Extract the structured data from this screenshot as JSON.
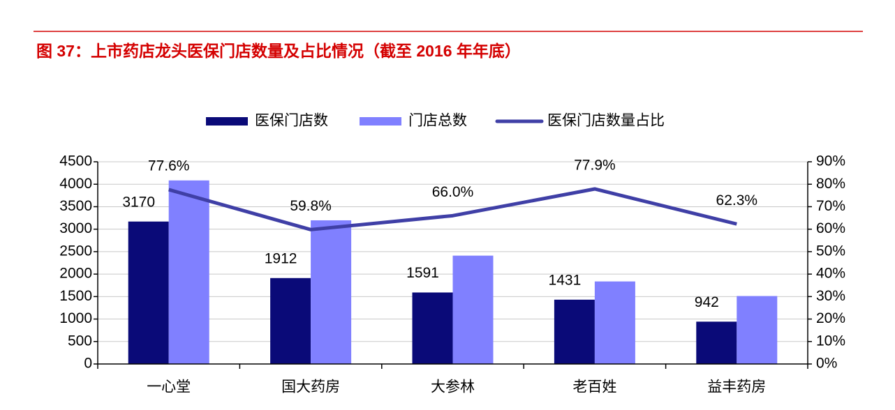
{
  "chart_data": {
    "type": "bar-line",
    "title": "图 37：上市药店龙头医保门店数量及占比情况（截至 2016 年年底）",
    "categories": [
      "一心堂",
      "国大药房",
      "大参林",
      "老百姓",
      "益丰药房"
    ],
    "series": [
      {
        "name": "医保门店数",
        "color": "#0a0a78",
        "type": "bar",
        "values": [
          3170,
          1912,
          1591,
          1431,
          942
        ],
        "show_labels": true
      },
      {
        "name": "门店总数",
        "color": "#8080ff",
        "type": "bar",
        "values": [
          4085,
          3197,
          2411,
          1837,
          1512
        ],
        "show_labels": false
      },
      {
        "name": "医保门店数量占比",
        "color": "#3f3fa6",
        "type": "line",
        "axis": "y2",
        "values": [
          77.6,
          59.8,
          66.0,
          77.9,
          62.3
        ],
        "value_labels": [
          "77.6%",
          "59.8%",
          "66.0%",
          "77.9%",
          "62.3%"
        ],
        "show_labels": true
      }
    ],
    "ylim": [
      0,
      4500
    ],
    "yticks": [
      0,
      500,
      1000,
      1500,
      2000,
      2500,
      3000,
      3500,
      4000,
      4500
    ],
    "y2lim": [
      0,
      90
    ],
    "y2ticks": [
      {
        "value": 0,
        "label": "0%"
      },
      {
        "value": 10,
        "label": "10%"
      },
      {
        "value": 20,
        "label": "20%"
      },
      {
        "value": 30,
        "label": "30%"
      },
      {
        "value": 40,
        "label": "40%"
      },
      {
        "value": 50,
        "label": "50%"
      },
      {
        "value": 60,
        "label": "60%"
      },
      {
        "value": 70,
        "label": "70%"
      },
      {
        "value": 80,
        "label": "80%"
      },
      {
        "value": 90,
        "label": "90%"
      }
    ],
    "grid": true,
    "legend": "top"
  }
}
